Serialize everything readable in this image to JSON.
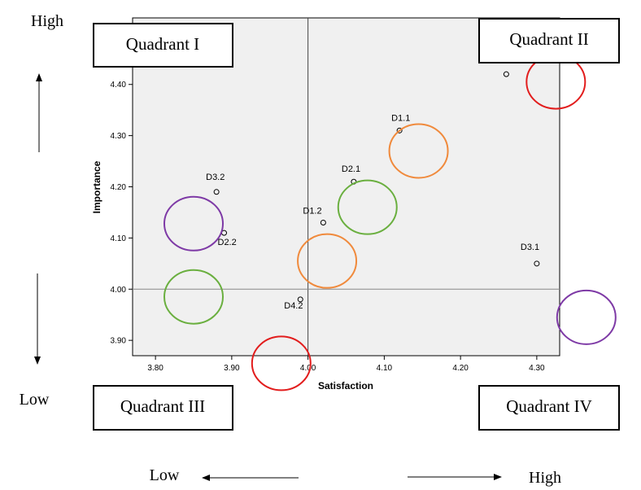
{
  "chart_data": {
    "type": "scatter",
    "title": "",
    "xlabel": "Satisfaction",
    "ylabel": "Importance",
    "xlim": [
      3.77,
      4.33
    ],
    "ylim": [
      3.87,
      4.53
    ],
    "x_ticks": [
      3.8,
      3.9,
      4.0,
      4.1,
      4.2,
      4.3
    ],
    "y_ticks": [
      3.9,
      4.0,
      4.1,
      4.2,
      4.3,
      4.4
    ],
    "reference_lines": {
      "x": 4.0,
      "y": 4.0
    },
    "plot_background": "#f0f0f0",
    "grid": false,
    "points": [
      {
        "label": "",
        "x": 4.26,
        "y": 4.42
      },
      {
        "label": "D1.1",
        "x": 4.12,
        "y": 4.31
      },
      {
        "label": "D2.1",
        "x": 4.06,
        "y": 4.21
      },
      {
        "label": "D3.2",
        "x": 3.88,
        "y": 4.19
      },
      {
        "label": "D1.2",
        "x": 4.02,
        "y": 4.13
      },
      {
        "label": "D2.2",
        "x": 3.89,
        "y": 4.11
      },
      {
        "label": "D3.1",
        "x": 4.3,
        "y": 4.05
      },
      {
        "label": "D4.2",
        "x": 3.99,
        "y": 3.98
      }
    ],
    "highlight_circles": [
      {
        "color": "#e21d1d",
        "x": 4.325,
        "y": 4.405
      },
      {
        "color": "#f08a3c",
        "x": 4.145,
        "y": 4.27
      },
      {
        "color": "#6aaf3f",
        "x": 4.078,
        "y": 4.16
      },
      {
        "color": "#f08a3c",
        "x": 4.025,
        "y": 4.055
      },
      {
        "color": "#7e3aa6",
        "x": 3.85,
        "y": 4.128
      },
      {
        "color": "#6aaf3f",
        "x": 3.85,
        "y": 3.985
      },
      {
        "color": "#e21d1d",
        "x": 3.965,
        "y": 3.855
      },
      {
        "color": "#7e3aa6",
        "x": 4.365,
        "y": 3.945
      }
    ]
  },
  "quadrants": {
    "q1": "Quadrant I",
    "q2": "Quadrant II",
    "q3": "Quadrant III",
    "q4": "Quadrant IV"
  },
  "vertical_axis": {
    "high": "High",
    "low": "Low"
  },
  "horizontal_axis": {
    "low": "Low",
    "high": "High"
  }
}
